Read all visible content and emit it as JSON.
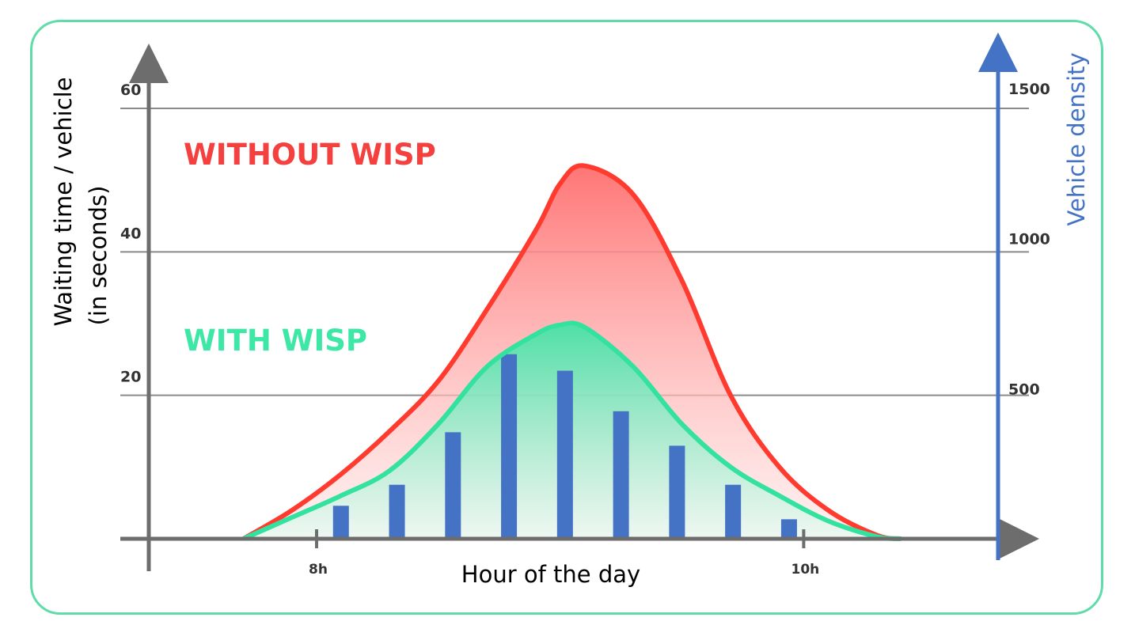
{
  "chart_data": {
    "type": "area",
    "title": "",
    "xlabel": "Hour of the day",
    "ylabel_lines": [
      "Waiting time / vehicle",
      "(in seconds)"
    ],
    "y2label": "Vehicle density",
    "ylim": [
      0,
      60
    ],
    "y2lim": [
      0,
      1500
    ],
    "yticks": [
      20,
      40,
      60
    ],
    "y2ticks": [
      500,
      1000,
      1500
    ],
    "xlim": [
      7.35,
      10.6
    ],
    "xticks": [
      {
        "value": 8,
        "label": "8h"
      },
      {
        "value": 10,
        "label": "10h"
      }
    ],
    "grid": true,
    "series": [
      {
        "name": "WITHOUT WISP",
        "color": "#ff3b30",
        "label_color": "#f54040",
        "axis": "left",
        "x": [
          7.7,
          7.9,
          8.1,
          8.3,
          8.5,
          8.7,
          8.9,
          9.0,
          9.1,
          9.3,
          9.5,
          9.7,
          9.9,
          10.1,
          10.3,
          10.4
        ],
        "values": [
          0,
          4,
          9,
          15,
          22,
          32,
          43,
          49.5,
          52,
          48,
          36,
          20,
          10,
          4,
          0.5,
          0
        ]
      },
      {
        "name": "WITH WISP",
        "color": "#34e2a0",
        "label_color": "#3de7a6",
        "axis": "left",
        "x": [
          7.7,
          7.9,
          8.1,
          8.3,
          8.5,
          8.7,
          8.9,
          9.0,
          9.1,
          9.3,
          9.5,
          9.7,
          9.9,
          10.1,
          10.3,
          10.4
        ],
        "values": [
          0,
          3,
          6,
          9.5,
          16,
          24,
          28.5,
          29.8,
          29.5,
          24,
          16,
          10,
          6,
          2.5,
          0.3,
          0
        ]
      },
      {
        "name": "Vehicle density",
        "type": "bar",
        "color": "#4472c4",
        "axis": "right",
        "x": [
          8.1,
          8.33,
          8.56,
          8.79,
          9.02,
          9.25,
          9.48,
          9.71,
          9.94
        ],
        "values": [
          110,
          180,
          355,
          615,
          560,
          425,
          310,
          180,
          65
        ]
      }
    ]
  }
}
